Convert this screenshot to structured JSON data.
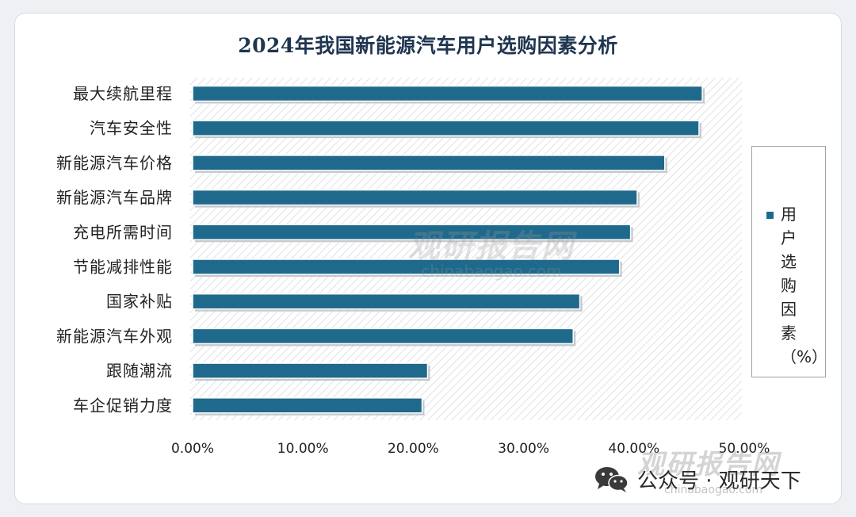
{
  "chart_data": {
    "type": "bar",
    "orientation": "horizontal",
    "title": "2024年我国新能源汽车用户选购因素分析",
    "categories": [
      "最大续航里程",
      "汽车安全性",
      "新能源汽车价格",
      "新能源汽车品牌",
      "充电所需时间",
      "节能减排性能",
      "国家补贴",
      "新能源汽车外观",
      "跟随潮流",
      "车企促销力度"
    ],
    "series": [
      {
        "name": "用户选购因素（%）",
        "values": [
          46.2,
          45.9,
          42.8,
          40.3,
          39.7,
          38.7,
          35.1,
          34.5,
          21.3,
          20.8
        ],
        "color": "#1f6a8c"
      }
    ],
    "x_ticks": [
      "0.00%",
      "10.00%",
      "20.00%",
      "30.00%",
      "40.00%",
      "50.00%"
    ],
    "xlim": [
      0,
      50
    ],
    "grid": false,
    "legend_position": "right",
    "plot_background": "hatched"
  },
  "watermarks": {
    "center_name": "观研报告网",
    "center_url": "chinabaogao.com",
    "corner_name": "观研报告网",
    "corner_url": "chinabaogao.com",
    "account": "公众号 · 观研天下",
    "icon": "wechat-icon"
  }
}
